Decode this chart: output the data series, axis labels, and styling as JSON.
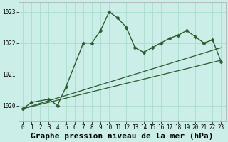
{
  "bg_color": "#cceee8",
  "grid_color": "#aaddcc",
  "line_color": "#2d5a2d",
  "xlabel": "Graphe pression niveau de la mer (hPa)",
  "ylim": [
    1019.5,
    1023.3
  ],
  "xlim": [
    -0.5,
    23.5
  ],
  "yticks": [
    1020,
    1021,
    1022,
    1023
  ],
  "xticks": [
    0,
    1,
    2,
    3,
    4,
    5,
    6,
    7,
    8,
    9,
    10,
    11,
    12,
    13,
    14,
    15,
    16,
    17,
    18,
    19,
    20,
    21,
    22,
    23
  ],
  "series": [
    {
      "x": [
        0,
        1,
        3,
        4,
        5,
        7,
        8,
        9,
        10,
        11,
        12,
        13,
        14,
        15,
        16,
        17,
        18,
        19,
        20,
        21,
        22,
        23
      ],
      "y": [
        1019.9,
        1020.1,
        1020.2,
        1020.0,
        1020.6,
        1022.0,
        1022.0,
        1022.4,
        1023.0,
        1022.8,
        1022.5,
        1021.85,
        1021.7,
        1021.85,
        1022.0,
        1022.15,
        1022.25,
        1022.4,
        1022.2,
        1022.0,
        1022.1,
        1021.4
      ],
      "marker": "D",
      "markersize": 2.5,
      "linewidth": 1.0,
      "has_markers": true
    },
    {
      "x": [
        0,
        23
      ],
      "y": [
        1019.9,
        1021.85
      ],
      "marker": null,
      "markersize": 0,
      "linewidth": 0.9,
      "has_markers": false
    },
    {
      "x": [
        0,
        23
      ],
      "y": [
        1019.9,
        1021.45
      ],
      "marker": null,
      "markersize": 0,
      "linewidth": 0.9,
      "has_markers": false
    }
  ],
  "title_fontsize": 8,
  "tick_fontsize": 5.5,
  "xlabel_fontsize": 8
}
